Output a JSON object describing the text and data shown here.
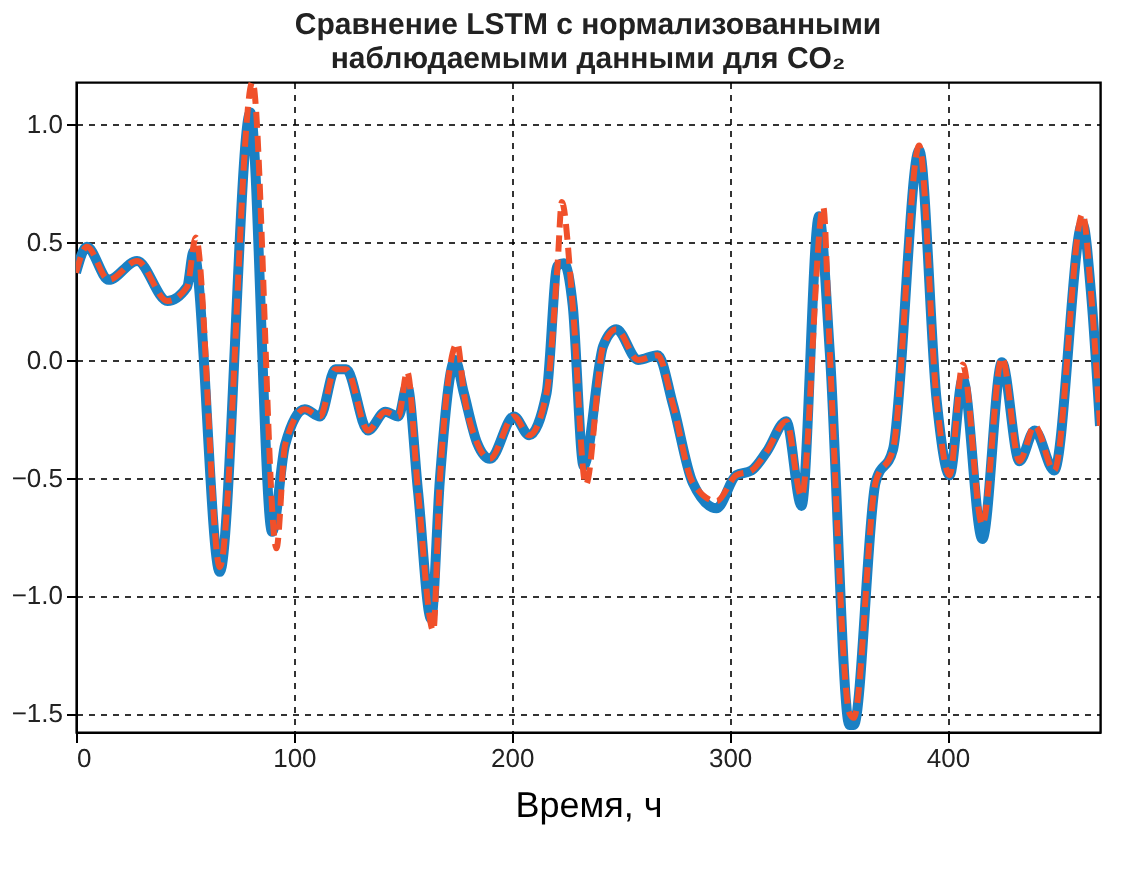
{
  "chart_data": {
    "type": "line",
    "title": "Сравнение LSTM с нормализованными наблюдаемыми данными для CO₂",
    "xlabel": "Время, ч",
    "xlim": [
      0,
      470
    ],
    "ylim": [
      -1.58,
      1.18
    ],
    "xticks": [
      0,
      100,
      200,
      300,
      400
    ],
    "yticks": [
      -1.5,
      {
        "value": -1,
        "label": "−1.0"
      },
      -0.5,
      {
        "value": 0,
        "label": "0.0"
      },
      0.5,
      {
        "value": 1,
        "label": "1.0"
      }
    ],
    "grid": true,
    "series": [
      {
        "color": "#1a80c4",
        "line_style": "solid",
        "x": [
          0,
          5,
          15,
          28,
          42,
          51,
          54,
          66,
          80,
          90,
          96,
          105,
          112,
          119,
          124,
          134,
          142,
          148,
          152,
          157,
          163,
          167,
          174,
          178,
          184,
          190,
          201,
          208,
          216,
          221,
          224,
          228,
          233,
          242,
          248,
          258,
          267,
          274,
          283,
          294,
          303,
          310,
          317,
          326,
          333,
          341,
          346,
          355,
          357,
          367,
          375,
          387,
          395,
          401,
          407,
          416,
          425,
          433,
          440,
          449,
          462,
          466,
          470
        ],
        "values": [
          0.37,
          0.48,
          0.34,
          0.42,
          0.25,
          0.31,
          0.46,
          -0.9,
          1.05,
          -0.73,
          -0.36,
          -0.21,
          -0.24,
          -0.04,
          -0.04,
          -0.3,
          -0.22,
          -0.24,
          -0.11,
          -0.56,
          -1.1,
          -0.51,
          0.0,
          -0.14,
          -0.35,
          -0.42,
          -0.24,
          -0.32,
          -0.14,
          0.4,
          0.41,
          0.23,
          -0.45,
          0.06,
          0.13,
          0.0,
          0.02,
          -0.19,
          -0.52,
          -0.63,
          -0.49,
          -0.47,
          -0.39,
          -0.26,
          -0.62,
          0.61,
          0.03,
          -1.55,
          -1.55,
          -0.52,
          -0.38,
          0.89,
          -0.17,
          -0.49,
          -0.08,
          -0.76,
          -0.01,
          -0.43,
          -0.3,
          -0.47,
          0.58,
          0.27,
          -0.28
        ]
      },
      {
        "color": "#f0502a",
        "line_style": "dashed",
        "x": [
          0,
          5,
          15,
          28,
          42,
          51,
          55,
          66,
          81,
          92,
          96,
          105,
          112,
          119,
          124,
          134,
          142,
          148,
          152,
          157,
          164,
          167,
          175,
          178,
          184,
          190,
          201,
          208,
          216,
          221,
          223,
          228,
          234,
          242,
          248,
          258,
          267,
          274,
          283,
          294,
          303,
          310,
          317,
          326,
          333,
          343,
          346,
          355,
          357,
          367,
          375,
          387,
          395,
          401,
          407,
          416,
          425,
          433,
          440,
          449,
          462,
          466,
          470
        ],
        "values": [
          0.37,
          0.48,
          0.34,
          0.42,
          0.25,
          0.31,
          0.52,
          -0.88,
          1.18,
          -0.8,
          -0.36,
          -0.21,
          -0.24,
          -0.04,
          -0.04,
          -0.3,
          -0.22,
          -0.24,
          -0.05,
          -0.56,
          -1.15,
          -0.51,
          0.07,
          -0.14,
          -0.35,
          -0.42,
          -0.24,
          -0.32,
          -0.14,
          0.4,
          0.67,
          0.23,
          -0.53,
          0.06,
          0.13,
          0.0,
          0.02,
          -0.19,
          -0.52,
          -0.6,
          -0.49,
          -0.47,
          -0.39,
          -0.26,
          -0.58,
          0.65,
          0.03,
          -1.5,
          -1.52,
          -0.52,
          -0.38,
          0.91,
          -0.17,
          -0.49,
          -0.02,
          -0.7,
          0.01,
          -0.43,
          -0.28,
          -0.47,
          0.62,
          0.27,
          -0.28
        ]
      }
    ]
  }
}
